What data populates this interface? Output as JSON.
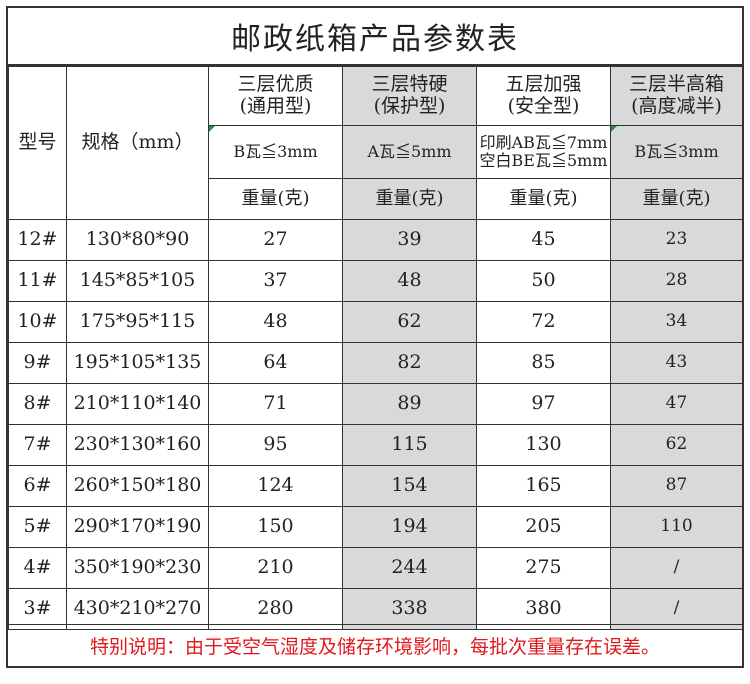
{
  "title": "邮政纸箱产品参数表",
  "header": {
    "model_label": "型号",
    "spec_label": "规格（mm）",
    "columns": [
      {
        "name_line1": "三层优质",
        "name_line2": "(通用型)",
        "grade_line1": "B瓦≦3mm",
        "grade_line2": "",
        "weight_label": "重量(克)"
      },
      {
        "name_line1": "三层特硬",
        "name_line2": "(保护型)",
        "grade_line1": "A瓦≦5mm",
        "grade_line2": "",
        "weight_label": "重量(克)"
      },
      {
        "name_line1": "五层加强",
        "name_line2": "(安全型)",
        "grade_line1": "印刷AB瓦≦7mm",
        "grade_line2": "空白BE瓦≦5mm",
        "weight_label": "重量(克)"
      },
      {
        "name_line1": "三层半高箱",
        "name_line2": "(高度减半)",
        "grade_line1": "B瓦≦3mm",
        "grade_line2": "",
        "weight_label": "重量(克)"
      }
    ]
  },
  "rows": [
    {
      "model": "12#",
      "spec": "130*80*90",
      "w1": "27",
      "w2": "39",
      "w3": "45",
      "w4": "23"
    },
    {
      "model": "11#",
      "spec": "145*85*105",
      "w1": "37",
      "w2": "48",
      "w3": "50",
      "w4": "28"
    },
    {
      "model": "10#",
      "spec": "175*95*115",
      "w1": "48",
      "w2": "62",
      "w3": "72",
      "w4": "34"
    },
    {
      "model": "9#",
      "spec": "195*105*135",
      "w1": "64",
      "w2": "82",
      "w3": "85",
      "w4": "43"
    },
    {
      "model": "8#",
      "spec": "210*110*140",
      "w1": "71",
      "w2": "89",
      "w3": "97",
      "w4": "47"
    },
    {
      "model": "7#",
      "spec": "230*130*160",
      "w1": "95",
      "w2": "115",
      "w3": "130",
      "w4": "62"
    },
    {
      "model": "6#",
      "spec": "260*150*180",
      "w1": "124",
      "w2": "154",
      "w3": "165",
      "w4": "87"
    },
    {
      "model": "5#",
      "spec": "290*170*190",
      "w1": "150",
      "w2": "194",
      "w3": "205",
      "w4": "110"
    },
    {
      "model": "4#",
      "spec": "350*190*230",
      "w1": "210",
      "w2": "244",
      "w3": "275",
      "w4": "/"
    },
    {
      "model": "3#",
      "spec": "430*210*270",
      "w1": "280",
      "w2": "338",
      "w3": "380",
      "w4": "/"
    }
  ],
  "note": "特别说明：由于受空气湿度及储存环境影响，每批次重量存在误差。",
  "colors": {
    "gray_column": "#d9d9d9",
    "note_text": "#e0191e",
    "border": "#333333"
  }
}
